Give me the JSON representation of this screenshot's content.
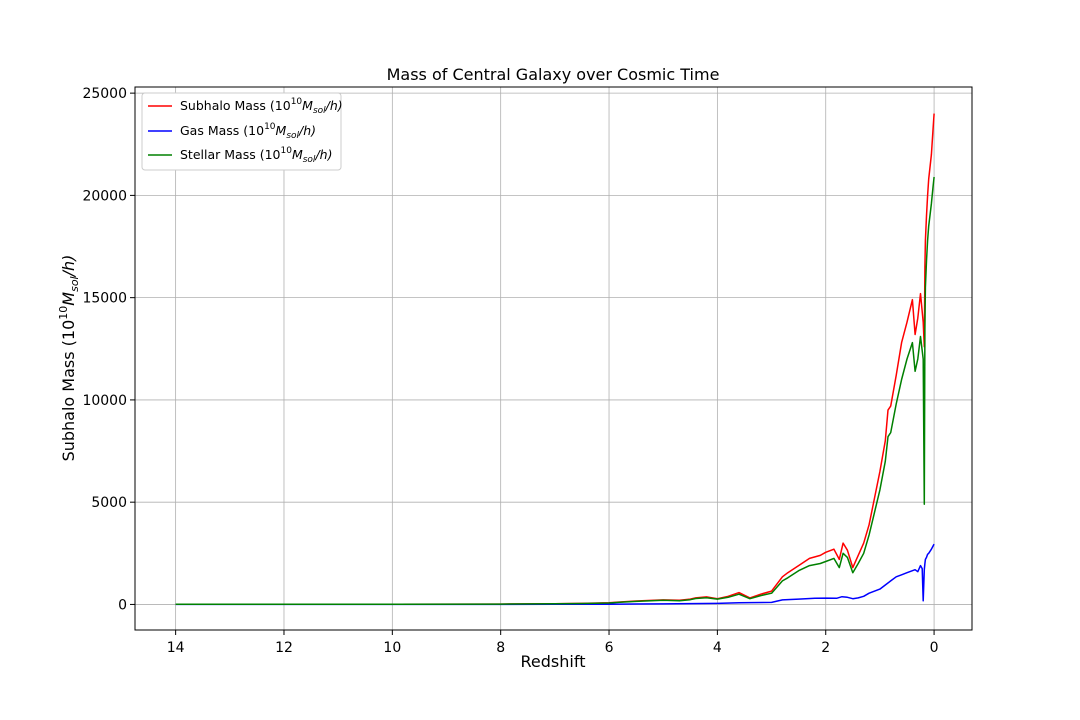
{
  "chart_data": {
    "type": "line",
    "title": "Mass of Central Galaxy over Cosmic Time",
    "xlabel": "Redshift",
    "ylabel": "Subhalo Mass (10^10 M_sol/h)",
    "xlim": [
      14.75,
      -0.7
    ],
    "ylim": [
      -1250,
      25300
    ],
    "x_ticks": [
      14,
      12,
      10,
      8,
      6,
      4,
      2,
      0
    ],
    "y_ticks": [
      0,
      5000,
      10000,
      15000,
      20000,
      25000
    ],
    "grid": true,
    "legend_position": "top-left",
    "series": [
      {
        "name": "Subhalo Mass (10^10 M_sol/h)",
        "color": "#ff0000",
        "x": [
          14,
          12,
          10,
          8,
          7,
          6.5,
          6,
          5.8,
          5.5,
          5,
          4.7,
          4.5,
          4.4,
          4.2,
          4.0,
          3.8,
          3.6,
          3.4,
          3.2,
          3.0,
          2.8,
          2.7,
          2.5,
          2.3,
          2.1,
          2.0,
          1.85,
          1.75,
          1.68,
          1.6,
          1.5,
          1.4,
          1.3,
          1.2,
          1.1,
          1.0,
          0.9,
          0.85,
          0.8,
          0.7,
          0.6,
          0.5,
          0.4,
          0.35,
          0.3,
          0.25,
          0.2,
          0.18,
          0.17,
          0.16,
          0.14,
          0.12,
          0.1,
          0.05,
          0.02,
          0.0
        ],
        "values": [
          5,
          8,
          12,
          18,
          30,
          50,
          80,
          120,
          170,
          220,
          200,
          260,
          320,
          370,
          280,
          400,
          580,
          320,
          500,
          650,
          1350,
          1550,
          1900,
          2250,
          2400,
          2550,
          2700,
          2200,
          3000,
          2650,
          1800,
          2400,
          3000,
          3900,
          5200,
          6500,
          8000,
          9500,
          9700,
          11200,
          12800,
          13800,
          14900,
          13200,
          14000,
          15200,
          13800,
          12600,
          16500,
          17800,
          19000,
          20000,
          20800,
          22000,
          23200,
          24000
        ]
      },
      {
        "name": "Gas Mass (10^10 M_sol/h)",
        "color": "#0000ff",
        "x": [
          14,
          12,
          10,
          8,
          7,
          6,
          5,
          4.5,
          4.0,
          3.6,
          3.4,
          3.0,
          2.8,
          2.5,
          2.2,
          2.0,
          1.8,
          1.7,
          1.6,
          1.5,
          1.4,
          1.3,
          1.2,
          1.0,
          0.9,
          0.8,
          0.7,
          0.6,
          0.5,
          0.4,
          0.35,
          0.3,
          0.25,
          0.22,
          0.2,
          0.18,
          0.17,
          0.16,
          0.14,
          0.12,
          0.1,
          0.05,
          0.02,
          0.0
        ],
        "values": [
          0,
          0,
          0,
          0,
          5,
          10,
          25,
          40,
          50,
          80,
          90,
          100,
          220,
          260,
          300,
          310,
          300,
          380,
          350,
          280,
          320,
          400,
          550,
          750,
          950,
          1150,
          1350,
          1450,
          1550,
          1650,
          1700,
          1600,
          1900,
          1750,
          180,
          1700,
          2000,
          2200,
          2300,
          2450,
          2500,
          2700,
          2850,
          2950
        ]
      },
      {
        "name": "Stellar Mass (10^10 M_sol/h)",
        "color": "#008000",
        "x": [
          14,
          12,
          10,
          8,
          7,
          6.5,
          6,
          5.8,
          5.5,
          5,
          4.7,
          4.5,
          4.4,
          4.2,
          4.0,
          3.8,
          3.6,
          3.4,
          3.2,
          3.0,
          2.8,
          2.7,
          2.5,
          2.3,
          2.1,
          2.0,
          1.85,
          1.75,
          1.68,
          1.6,
          1.5,
          1.4,
          1.3,
          1.2,
          1.1,
          1.0,
          0.9,
          0.85,
          0.8,
          0.7,
          0.6,
          0.5,
          0.4,
          0.35,
          0.3,
          0.25,
          0.2,
          0.18,
          0.17,
          0.16,
          0.14,
          0.12,
          0.1,
          0.05,
          0.02,
          0.0
        ],
        "values": [
          5,
          8,
          12,
          18,
          30,
          45,
          70,
          110,
          150,
          200,
          180,
          230,
          290,
          330,
          260,
          350,
          500,
          280,
          430,
          550,
          1150,
          1300,
          1650,
          1900,
          2000,
          2100,
          2250,
          1800,
          2500,
          2300,
          1550,
          2000,
          2500,
          3400,
          4500,
          5600,
          7000,
          8200,
          8400,
          9800,
          11000,
          12000,
          12800,
          11400,
          12000,
          13100,
          12000,
          4900,
          13500,
          15500,
          16800,
          17800,
          18500,
          19600,
          20400,
          20900
        ]
      }
    ]
  },
  "legend": {
    "subhalo_prefix": "Subhalo Mass (10",
    "gas_prefix": "Gas Mass (10",
    "stellar_prefix": "Stellar Mass (10",
    "exp": "10",
    "unit_M": "M",
    "unit_sub": "sol",
    "unit_tail": "/h)"
  },
  "ylabel_parts": {
    "prefix": "Subhalo Mass (10",
    "exp": "10",
    "unit_M": "M",
    "unit_sub": "sol",
    "unit_tail": "/h)"
  }
}
